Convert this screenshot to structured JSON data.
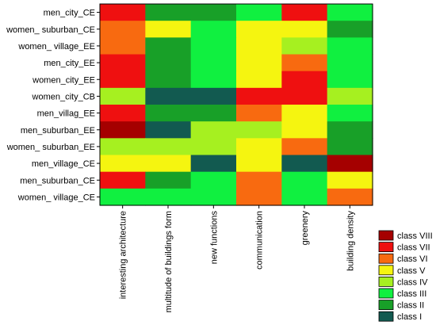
{
  "chart_data": {
    "type": "heatmap",
    "rows": [
      "men_city_CE",
      "women_ suburban_CE",
      "women_ village_EE",
      "men_city_EE",
      "women_city_EE",
      "women_city_CB",
      "men_villag_EE",
      "men_suburban_EE",
      "women_ suburban_EE",
      "men_village_CE",
      "men_suburban_CE",
      "women_ village_CE"
    ],
    "columns": [
      "interesting architecture",
      "multitude of buildings form",
      "new functions",
      "communication",
      "greenery",
      "building density"
    ],
    "cells": [
      [
        "class VII",
        "class II",
        "class II",
        "class III",
        "class VII",
        "class III"
      ],
      [
        "class VI",
        "class V",
        "class III",
        "class V",
        "class V",
        "class II"
      ],
      [
        "class VI",
        "class II",
        "class III",
        "class V",
        "class IV",
        "class III"
      ],
      [
        "class VII",
        "class II",
        "class III",
        "class V",
        "class VI",
        "class III"
      ],
      [
        "class VII",
        "class II",
        "class III",
        "class V",
        "class VII",
        "class III"
      ],
      [
        "class IV",
        "class I",
        "class I",
        "class VII",
        "class VII",
        "class IV"
      ],
      [
        "class VII",
        "class II",
        "class II",
        "class VI",
        "class V",
        "class III"
      ],
      [
        "class VIII",
        "class I",
        "class IV",
        "class IV",
        "class V",
        "class II"
      ],
      [
        "class IV",
        "class IV",
        "class IV",
        "class V",
        "class VI",
        "class II"
      ],
      [
        "class V",
        "class V",
        "class I",
        "class V",
        "class I",
        "class VIII"
      ],
      [
        "class VII",
        "class II",
        "class III",
        "class VI",
        "class III",
        "class V"
      ],
      [
        "class III",
        "class III",
        "class III",
        "class VI",
        "class III",
        "class VI"
      ]
    ],
    "legend": [
      {
        "label": "class VIII",
        "color": "#A50000"
      },
      {
        "label": "class VII",
        "color": "#EF1010"
      },
      {
        "label": "class VI",
        "color": "#F86A10"
      },
      {
        "label": "class V",
        "color": "#F5F510"
      },
      {
        "label": "class IV",
        "color": "#A6F020"
      },
      {
        "label": "class III",
        "color": "#10F040"
      },
      {
        "label": "class II",
        "color": "#18A028"
      },
      {
        "label": "class I",
        "color": "#125A50"
      }
    ],
    "legend_position": "bottom-right",
    "grid": false
  }
}
